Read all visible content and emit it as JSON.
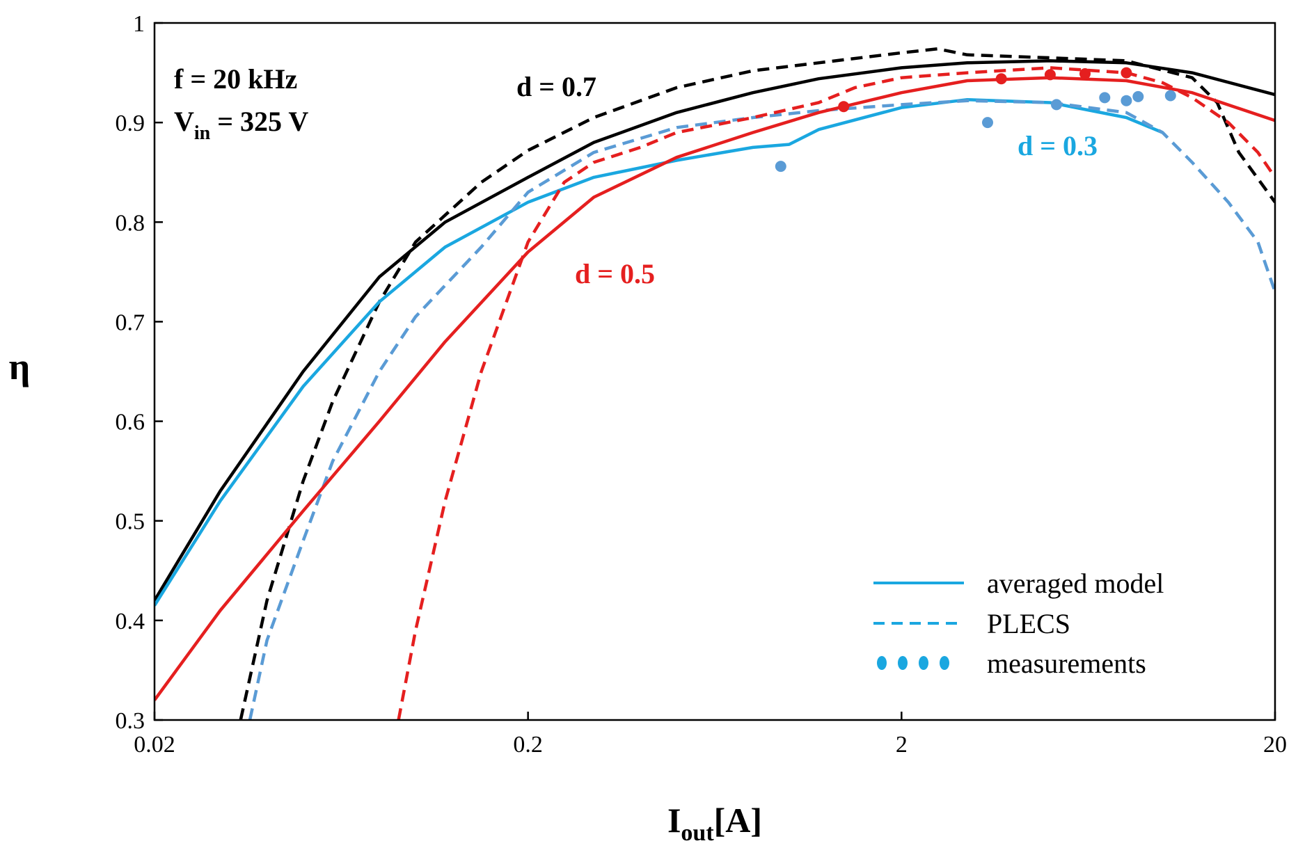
{
  "chart_data": {
    "type": "line",
    "xscale": "log",
    "xlim": [
      0.02,
      20
    ],
    "ylim": [
      0.3,
      1.0
    ],
    "xticks": [
      0.02,
      0.2,
      2,
      20
    ],
    "xtick_labels": [
      "0.02",
      "0.2",
      "2",
      "20"
    ],
    "yticks": [
      0.3,
      0.4,
      0.5,
      0.6,
      0.7,
      0.8,
      0.9,
      1.0
    ],
    "ytick_labels": [
      "0.3",
      "0.4",
      "0.5",
      "0.6",
      "0.7",
      "0.8",
      "0.9",
      "1"
    ],
    "ylabel": "η",
    "xlabel_main": "I",
    "xlabel_sub": "out",
    "xlabel_rest": "[A]",
    "conditions": {
      "freq": "f = 20 kHz",
      "vin_main": "V",
      "vin_sub": "in",
      "vin_rest": " = 325 V"
    },
    "series": [
      {
        "name": "d = 0.7 averaged model",
        "d": "0.7",
        "style": "solid",
        "color": "#000000",
        "x": [
          0.02,
          0.03,
          0.05,
          0.08,
          0.12,
          0.2,
          0.3,
          0.5,
          0.8,
          1.2,
          2,
          3,
          5,
          8,
          12,
          20
        ],
        "y": [
          0.42,
          0.53,
          0.65,
          0.745,
          0.8,
          0.845,
          0.88,
          0.91,
          0.93,
          0.944,
          0.955,
          0.96,
          0.962,
          0.96,
          0.95,
          0.928
        ]
      },
      {
        "name": "d = 0.7 PLECS",
        "d": "0.7",
        "style": "dashed",
        "color": "#000000",
        "x": [
          0.034,
          0.04,
          0.05,
          0.06,
          0.08,
          0.1,
          0.15,
          0.2,
          0.3,
          0.5,
          0.8,
          1.2,
          2,
          2.5,
          3,
          5,
          8,
          12,
          14,
          16,
          20
        ],
        "y": [
          0.3,
          0.42,
          0.54,
          0.62,
          0.72,
          0.78,
          0.84,
          0.872,
          0.905,
          0.935,
          0.952,
          0.96,
          0.97,
          0.974,
          0.968,
          0.965,
          0.962,
          0.945,
          0.92,
          0.87,
          0.82
        ]
      },
      {
        "name": "d = 0.3 averaged model",
        "d": "0.3",
        "style": "solid",
        "color": "#1aa7e0",
        "x": [
          0.02,
          0.03,
          0.05,
          0.08,
          0.12,
          0.2,
          0.3,
          0.5,
          0.8,
          1.0,
          1.2,
          2,
          3,
          5,
          8,
          10
        ],
        "y": [
          0.415,
          0.52,
          0.635,
          0.72,
          0.775,
          0.82,
          0.845,
          0.862,
          0.875,
          0.878,
          0.893,
          0.915,
          0.923,
          0.92,
          0.905,
          0.89
        ]
      },
      {
        "name": "d = 0.3 PLECS",
        "d": "0.3",
        "style": "dashed",
        "color": "#5a9bd5",
        "x": [
          0.036,
          0.04,
          0.05,
          0.06,
          0.08,
          0.1,
          0.15,
          0.2,
          0.3,
          0.5,
          0.8,
          1.2,
          2,
          3,
          5,
          8,
          10,
          12,
          15,
          18,
          20
        ],
        "y": [
          0.3,
          0.38,
          0.48,
          0.56,
          0.65,
          0.705,
          0.775,
          0.83,
          0.87,
          0.895,
          0.905,
          0.912,
          0.918,
          0.922,
          0.92,
          0.91,
          0.89,
          0.86,
          0.82,
          0.78,
          0.73
        ]
      },
      {
        "name": "d = 0.5 averaged model",
        "d": "0.5",
        "style": "solid",
        "color": "#e51f1f",
        "x": [
          0.02,
          0.03,
          0.05,
          0.08,
          0.12,
          0.2,
          0.3,
          0.5,
          0.8,
          1.2,
          2,
          3,
          5,
          8,
          12,
          20
        ],
        "y": [
          0.32,
          0.41,
          0.51,
          0.6,
          0.68,
          0.77,
          0.825,
          0.865,
          0.89,
          0.91,
          0.93,
          0.942,
          0.945,
          0.942,
          0.93,
          0.902
        ]
      },
      {
        "name": "d = 0.5 PLECS",
        "d": "0.5",
        "style": "dashed",
        "color": "#e51f1f",
        "x": [
          0.09,
          0.1,
          0.12,
          0.15,
          0.2,
          0.25,
          0.3,
          0.4,
          0.5,
          0.8,
          1.2,
          1.5,
          2,
          3,
          5,
          8,
          10,
          12,
          15,
          18,
          20
        ],
        "y": [
          0.3,
          0.39,
          0.52,
          0.65,
          0.78,
          0.84,
          0.86,
          0.875,
          0.89,
          0.905,
          0.92,
          0.935,
          0.945,
          0.95,
          0.955,
          0.95,
          0.94,
          0.925,
          0.9,
          0.87,
          0.845
        ]
      }
    ],
    "measurements": [
      {
        "d": "0.5",
        "color": "#e51f1f",
        "x": [
          1.4,
          3.7,
          5.0,
          6.2,
          8.0
        ],
        "y": [
          0.916,
          0.944,
          0.948,
          0.949,
          0.95
        ]
      },
      {
        "d": "0.3",
        "color": "#5a9bd5",
        "x": [
          0.95,
          3.4,
          5.2,
          7.0,
          8.0,
          8.6,
          10.5
        ],
        "y": [
          0.856,
          0.9,
          0.918,
          0.925,
          0.922,
          0.926,
          0.927
        ]
      }
    ],
    "annotations": [
      {
        "text": "d = 0.7",
        "color": "#000000"
      },
      {
        "text": "d = 0.5",
        "color": "#e51f1f"
      },
      {
        "text": "d = 0.3",
        "color": "#1aa7e0"
      }
    ],
    "legend": {
      "placement": "bottom-right",
      "color": "#1aa7e0",
      "entries": [
        "averaged model",
        "PLECS",
        "measurements"
      ]
    }
  }
}
